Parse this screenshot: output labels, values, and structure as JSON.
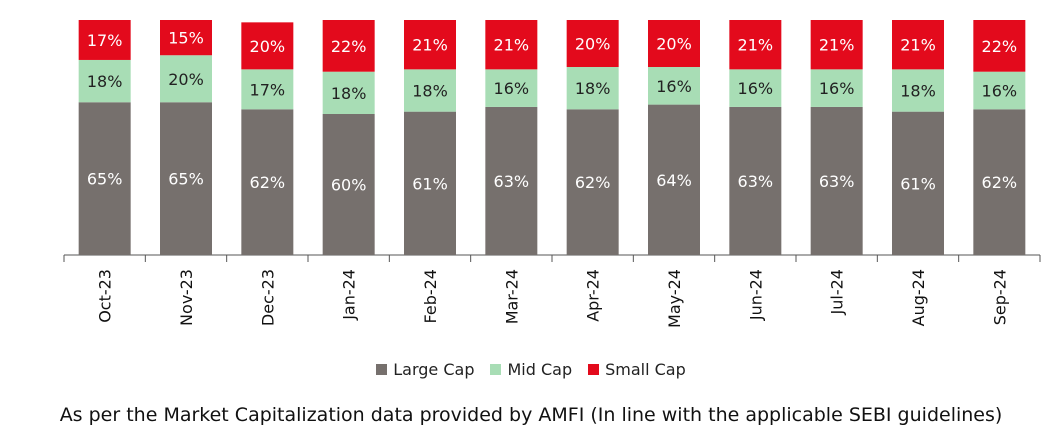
{
  "chart_data": {
    "type": "bar",
    "stacked": true,
    "percent": true,
    "categories": [
      "Oct-23",
      "Nov-23",
      "Dec-23",
      "Jan-24",
      "Feb-24",
      "Mar-24",
      "Apr-24",
      "May-24",
      "Jun-24",
      "Jul-24",
      "Aug-24",
      "Sep-24"
    ],
    "series": [
      {
        "name": "Large Cap",
        "color": "#76706D",
        "values": [
          65,
          65,
          62,
          60,
          61,
          63,
          62,
          64,
          63,
          63,
          61,
          62
        ]
      },
      {
        "name": "Mid Cap",
        "color": "#A8DDB5",
        "values": [
          18,
          20,
          17,
          18,
          18,
          16,
          18,
          16,
          16,
          16,
          18,
          16
        ]
      },
      {
        "name": "Small Cap",
        "color": "#E30A1C",
        "values": [
          17,
          15,
          20,
          22,
          21,
          21,
          20,
          20,
          21,
          21,
          21,
          22
        ]
      }
    ],
    "ylim": [
      0,
      100
    ],
    "grid": false,
    "legend_position": "bottom"
  },
  "footnote": "As per the Market Capitalization data provided by AMFI (In line with the applicable SEBI guidelines)"
}
